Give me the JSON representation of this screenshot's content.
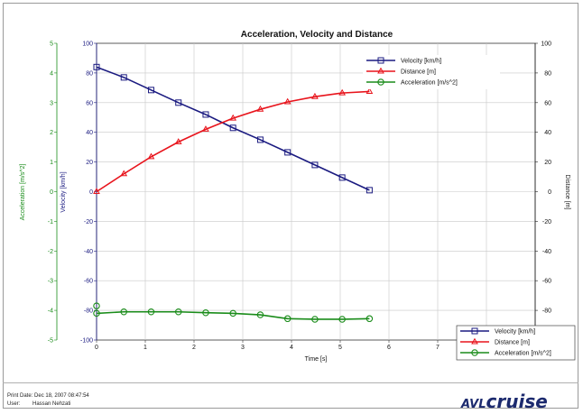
{
  "chart_data": {
    "type": "line",
    "title": "Acceleration, Velocity and Distance",
    "xlabel": "Time [s]",
    "xlim": [
      0,
      9
    ],
    "xticks": [
      "0",
      "1",
      "2",
      "3",
      "4",
      "5",
      "6",
      "7",
      "8",
      "9"
    ],
    "grid": true,
    "axes": {
      "left_outer": {
        "label": "Acceleration [m/s^2]",
        "range": [
          -5,
          5
        ],
        "ticks": [
          "5",
          "4",
          "3",
          "2",
          "1",
          "0",
          "-1",
          "-2",
          "-3",
          "-4",
          "-5"
        ],
        "color": "#1a8c1a"
      },
      "left_inner": {
        "label": "Velocity [km/h]",
        "range": [
          -100,
          100
        ],
        "ticks": [
          "100",
          "80",
          "60",
          "40",
          "20",
          "0",
          "-20",
          "-40",
          "-60",
          "-80",
          "-100"
        ],
        "color": "#1a1a80"
      },
      "right": {
        "label": "Distance [m]",
        "range": [
          -100,
          100
        ],
        "ticks": [
          "100",
          "80",
          "60",
          "40",
          "20",
          "0",
          "-20",
          "-40",
          "-60",
          "-80"
        ],
        "color": "#222222"
      }
    },
    "series": [
      {
        "name": "Velocity [km/h]",
        "axis": "left_inner",
        "color": "#1a1a80",
        "marker": "square",
        "x": [
          0.0,
          0.56,
          1.12,
          1.68,
          2.24,
          2.8,
          3.36,
          3.92,
          4.48,
          5.04,
          5.6
        ],
        "y": [
          84,
          77,
          68.5,
          60,
          52,
          43,
          35,
          26.5,
          18,
          9.5,
          1
        ]
      },
      {
        "name": "Distance [m]",
        "axis": "right",
        "color": "#e8141c",
        "marker": "triangle",
        "x": [
          0.0,
          0.56,
          1.12,
          1.68,
          2.24,
          2.8,
          3.36,
          3.92,
          4.48,
          5.04,
          5.6
        ],
        "y": [
          0,
          12,
          23.5,
          33.5,
          42,
          49.5,
          55.5,
          60.5,
          64,
          66.5,
          67.5
        ]
      },
      {
        "name": "Acceleration [m/s^2]",
        "axis": "left_outer",
        "color": "#1a8c1a",
        "marker": "circle",
        "x": [
          0.0,
          0.56,
          1.12,
          1.68,
          2.24,
          2.8,
          3.36,
          3.92,
          4.48,
          5.04,
          5.6
        ],
        "y": [
          -4.1,
          -4.05,
          -4.05,
          -4.05,
          -4.08,
          -4.1,
          -4.15,
          -4.28,
          -4.3,
          -4.3,
          -4.28
        ]
      }
    ],
    "extra_points": [
      {
        "series": "Acceleration [m/s^2]",
        "x": 0.0,
        "y": -3.85
      }
    ],
    "legends": [
      {
        "placement": "top-right",
        "entries": [
          "Velocity [km/h]",
          "Distance [m]",
          "Acceleration [m/s^2]"
        ]
      },
      {
        "placement": "bottom-right",
        "entries": [
          "Velocity [km/h]",
          "Distance [m]",
          "Acceleration [m/s^2]"
        ]
      }
    ]
  },
  "footer": {
    "print_date_label": "Print Date:",
    "print_date_value": "Dec 18, 2007 08:47:54",
    "user_label": "User:",
    "user_value": "Hassan Nehzati",
    "logo_avl": "AVL",
    "logo_cruise": "cruise"
  }
}
